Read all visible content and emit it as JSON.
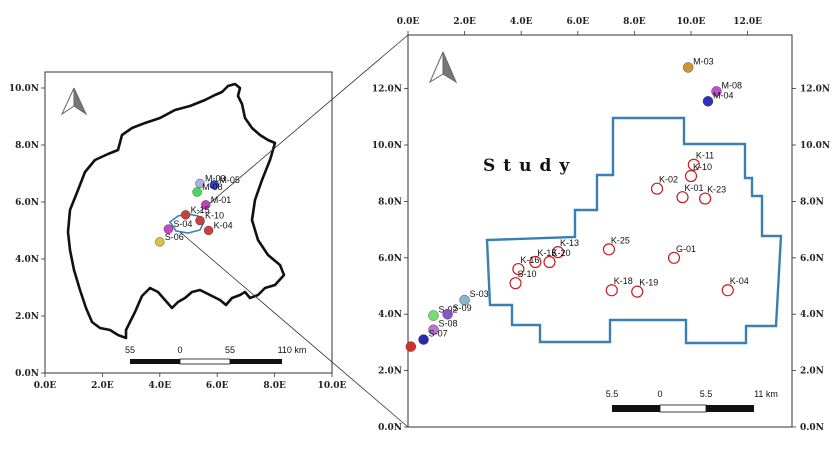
{
  "left_map": {
    "x_ticks": [
      "0.0E",
      "2.0E",
      "4.0E",
      "6.0E",
      "8.0E",
      "10.0E"
    ],
    "y_ticks": [
      "0.0N",
      "2.0N",
      "4.0N",
      "6.0N",
      "8.0N",
      "10.0N"
    ],
    "points": [
      {
        "label": "M-03",
        "x": 5.4,
        "y": 6.65,
        "color": "#b0b0e0"
      },
      {
        "label": "M-05",
        "x": 5.9,
        "y": 6.6,
        "color": "#2f3fc8"
      },
      {
        "label": "M-08",
        "x": 5.3,
        "y": 6.35,
        "color": "#44dd55"
      },
      {
        "label": "M-01",
        "x": 5.6,
        "y": 5.9,
        "color": "#c040c0"
      },
      {
        "label": "K-15",
        "x": 4.9,
        "y": 5.55,
        "color": "#c84040"
      },
      {
        "label": "K-10",
        "x": 5.4,
        "y": 5.35,
        "color": "#c84040"
      },
      {
        "label": "K-04",
        "x": 5.7,
        "y": 5.0,
        "color": "#c84040"
      },
      {
        "label": "S-04",
        "x": 4.3,
        "y": 5.05,
        "color": "#cc44cc"
      },
      {
        "label": "S-06",
        "x": 4.0,
        "y": 4.6,
        "color": "#e0c040"
      }
    ],
    "scale": {
      "labels": [
        "55",
        "0",
        "55",
        "110 km"
      ]
    }
  },
  "right_map": {
    "x_ticks": [
      "0.0E",
      "2.0E",
      "4.0E",
      "6.0E",
      "8.0E",
      "10.0E",
      "12.0E"
    ],
    "y_ticks": [
      "0.0N",
      "2.0N",
      "4.0N",
      "6.0N",
      "8.0N",
      "10.0N",
      "12.0N"
    ],
    "title": "Study",
    "wells": [
      {
        "label": "K-11",
        "x": 10.1,
        "y": 9.3
      },
      {
        "label": "K-10",
        "x": 10.0,
        "y": 8.9
      },
      {
        "label": "K-02",
        "x": 8.8,
        "y": 8.45
      },
      {
        "label": "K-01",
        "x": 9.7,
        "y": 8.15
      },
      {
        "label": "K-23",
        "x": 10.5,
        "y": 8.1
      },
      {
        "label": "K-25",
        "x": 7.1,
        "y": 6.3
      },
      {
        "label": "K-13",
        "x": 5.3,
        "y": 6.2
      },
      {
        "label": "K-15",
        "x": 4.5,
        "y": 5.85
      },
      {
        "label": "K-20",
        "x": 5.0,
        "y": 5.85
      },
      {
        "label": "K-16",
        "x": 3.9,
        "y": 5.6
      },
      {
        "label": "S-10",
        "x": 3.8,
        "y": 5.1
      },
      {
        "label": "G-01",
        "x": 9.4,
        "y": 6.0
      },
      {
        "label": "K-18",
        "x": 7.2,
        "y": 4.85
      },
      {
        "label": "K-19",
        "x": 8.1,
        "y": 4.8
      },
      {
        "label": "K-04",
        "x": 11.3,
        "y": 4.85
      }
    ],
    "points": [
      {
        "label": "M-03",
        "x": 9.9,
        "y": 12.75,
        "color": "#d09530"
      },
      {
        "label": "M-08",
        "x": 10.9,
        "y": 11.9,
        "color": "#c050d0"
      },
      {
        "label": "M-04",
        "x": 10.6,
        "y": 11.55,
        "color": "#3030c0"
      },
      {
        "label": "S-03",
        "x": 2.0,
        "y": 4.5,
        "color": "#88b4d0"
      },
      {
        "label": "S-02",
        "x": 0.9,
        "y": 3.95,
        "color": "#70e070"
      },
      {
        "label": "S-09",
        "x": 1.4,
        "y": 4.0,
        "color": "#8855cc"
      },
      {
        "label": "S-08",
        "x": 0.9,
        "y": 3.45,
        "color": "#c070d8"
      },
      {
        "label": "S-07",
        "x": 0.55,
        "y": 3.1,
        "color": "#2a2ab0"
      },
      {
        "label": "",
        "x": 0.1,
        "y": 2.85,
        "color": "#d03030"
      }
    ],
    "scale": {
      "labels": [
        "5.5",
        "0",
        "5.5",
        "11 km"
      ]
    }
  }
}
